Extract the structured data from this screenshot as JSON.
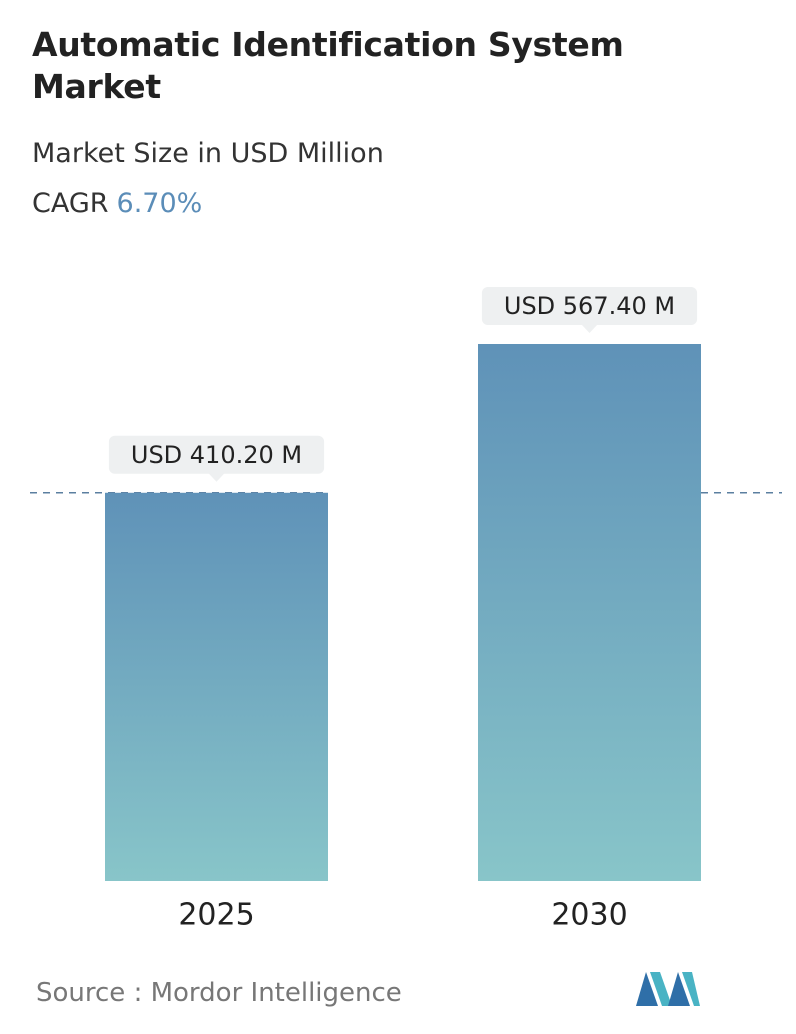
{
  "chart_data": {
    "type": "bar",
    "title": "Automatic Identification System Market",
    "subtitle": "Market Size in USD Million",
    "cagr_label": "CAGR",
    "cagr_value": "6.70%",
    "source": "Source :  Mordor Intelligence",
    "categories": [
      "2025",
      "2030"
    ],
    "values": [
      410.2,
      567.4
    ],
    "value_labels": [
      "USD 410.20 M",
      "USD 567.40 M"
    ],
    "gradient": [
      "#5f92b8",
      "#88c5c9"
    ],
    "reference_line_color": "#5b7fa0"
  }
}
